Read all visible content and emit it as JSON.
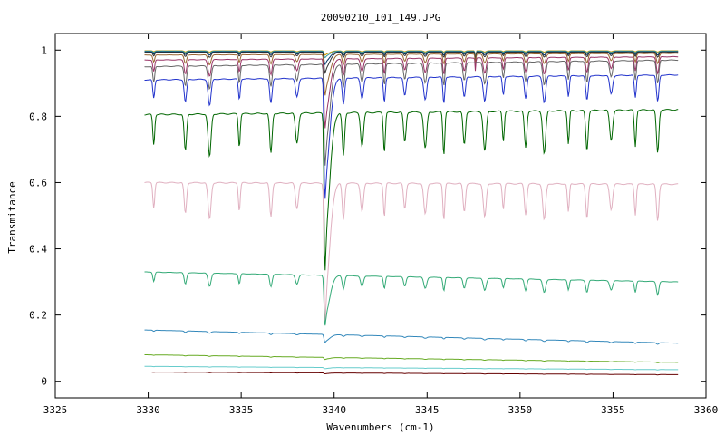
{
  "chart_data": {
    "type": "line",
    "title": "20090210_I01_149.JPG",
    "xlabel": "Wavenumbers (cm-1)",
    "ylabel": "Transmitance",
    "xlim": [
      3325,
      3360
    ],
    "ylim": [
      -0.05,
      1.05
    ],
    "xticks": [
      3325,
      3330,
      3335,
      3340,
      3345,
      3350,
      3355,
      3360
    ],
    "yticks": [
      0,
      0.2,
      0.4,
      0.6,
      0.8,
      1
    ],
    "xtick_labels": [
      "3325",
      "3330",
      "3335",
      "3340",
      "3345",
      "3350",
      "3355",
      "3360"
    ],
    "ytick_labels": [
      "0",
      "0.2",
      "0.4",
      "0.6",
      "0.8",
      "1"
    ],
    "grid": false,
    "legend": "none",
    "x_range_of_data": [
      3329.8,
      3358.5
    ],
    "line_centers_cm1": [
      3330.3,
      3332.0,
      3333.3,
      3334.9,
      3336.6,
      3338.0,
      3339.5,
      3340.5,
      3341.5,
      3342.7,
      3343.8,
      3344.9,
      3345.9,
      3347.0,
      3348.1,
      3349.1,
      3350.3,
      3351.3,
      3352.6,
      3353.6,
      3354.9,
      3356.2,
      3357.4
    ],
    "major_feature_cm1": 3339.5,
    "series": [
      {
        "color": "#cc9900",
        "baseline": [
          0.998,
          0.998
        ],
        "depth": 0.004,
        "main_depth": 0.01
      },
      {
        "color": "#339999",
        "baseline": [
          0.997,
          0.997
        ],
        "depth": 0.006,
        "main_depth": 0.015
      },
      {
        "color": "#003366",
        "baseline": [
          0.995,
          0.995
        ],
        "depth": 0.01,
        "main_depth": 0.03
      },
      {
        "color": "#333333",
        "baseline": [
          0.993,
          0.994
        ],
        "depth": 0.015,
        "main_depth": 0.05
      },
      {
        "color": "#996633",
        "baseline": [
          0.985,
          0.99
        ],
        "depth": 0.03,
        "main_depth": 0.1
      },
      {
        "color": "#993366",
        "baseline": [
          0.97,
          0.98
        ],
        "depth": 0.05,
        "main_depth": 0.17
      },
      {
        "color": "#666666",
        "baseline": [
          0.95,
          0.97
        ],
        "depth": 0.07,
        "main_depth": 0.25
      },
      {
        "color": "#2233cc",
        "baseline": [
          0.91,
          0.925
        ],
        "depth": 0.08,
        "main_depth": 0.3
      },
      {
        "color": "#006600",
        "baseline": [
          0.805,
          0.82
        ],
        "depth": 0.13,
        "main_depth": 0.37
      },
      {
        "color": "#e0b0c0",
        "baseline": [
          0.6,
          0.595
        ],
        "depth": 0.11,
        "main_depth": 0.34
      },
      {
        "color": "#33aa77",
        "baseline": [
          0.33,
          0.3
        ],
        "depth": 0.04,
        "main_depth": 0.12
      },
      {
        "color": "#3388bb",
        "baseline": [
          0.155,
          0.115
        ],
        "depth": 0.005,
        "main_depth": 0.02
      },
      {
        "color": "#66aa22",
        "baseline": [
          0.08,
          0.057
        ],
        "depth": 0.002,
        "main_depth": 0.005
      },
      {
        "color": "#66cccc",
        "baseline": [
          0.045,
          0.035
        ],
        "depth": 0.001,
        "main_depth": 0.003
      },
      {
        "color": "#660000",
        "baseline": [
          0.028,
          0.02
        ],
        "depth": 0.001,
        "main_depth": 0.002
      }
    ]
  }
}
